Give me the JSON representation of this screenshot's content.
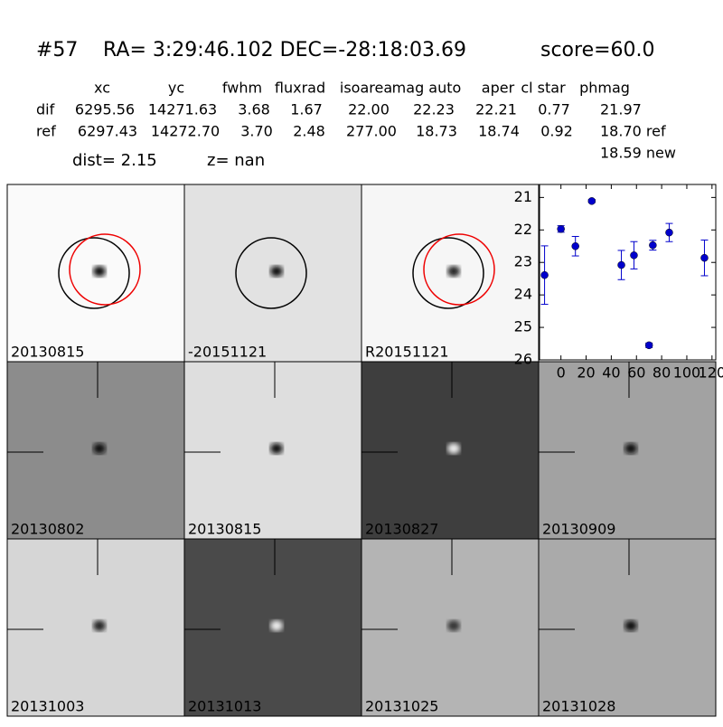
{
  "header": {
    "id": "#57",
    "coords": "RA= 3:29:46.102 DEC=-28:18:03.69",
    "score": "score=60.0"
  },
  "table": {
    "columns": [
      "xc",
      "yc",
      "fwhm",
      "fluxrad",
      "isoarea",
      "mag auto",
      "aper",
      "cl star",
      "phmag"
    ],
    "rows": [
      [
        "dif",
        "6295.56",
        "14271.63",
        "3.68",
        "1.67",
        "22.00",
        "22.23",
        "22.21",
        "0.77",
        "21.97"
      ],
      [
        "ref",
        "6297.43",
        "14272.70",
        "3.70",
        "2.48",
        "277.00",
        "18.73",
        "18.74",
        "0.92",
        "18.70 ref"
      ]
    ],
    "extra": "18.59 new"
  },
  "dist": "dist=  2.15",
  "z": "z=   nan",
  "panels": [
    {
      "label": "20130815",
      "bg": "#fafafa",
      "blob": "#111",
      "circles": [
        "#000",
        "#e00"
      ]
    },
    {
      "label": "-20151121",
      "bg": "#e2e2e2",
      "blob": "#111",
      "circles": [
        "#000"
      ]
    },
    {
      "label": "R20151121",
      "bg": "#f6f6f6",
      "blob": "#222",
      "circles": [
        "#000",
        "#e00"
      ]
    },
    null,
    {
      "label": "20130802",
      "bg": "#8c8c8c",
      "blob": "#111",
      "cross": true
    },
    {
      "label": "20130815",
      "bg": "#dedede",
      "blob": "#111",
      "cross": true,
      "labelColor": "#e00"
    },
    {
      "label": "20130827",
      "bg": "#3e3e3e",
      "blob": "#eee",
      "cross": true
    },
    {
      "label": "20130909",
      "bg": "#a2a2a2",
      "blob": "#111",
      "cross": true
    },
    {
      "label": "20131003",
      "bg": "#d6d6d6",
      "blob": "#222",
      "cross": true
    },
    {
      "label": "20131013",
      "bg": "#4a4a4a",
      "blob": "#eee",
      "cross": true
    },
    {
      "label": "20131025",
      "bg": "#b4b4b4",
      "blob": "#333",
      "cross": true
    },
    {
      "label": "20131028",
      "bg": "#aaaaaa",
      "blob": "#111",
      "cross": true
    }
  ],
  "chart_data": {
    "type": "scatter",
    "color": "#0000cc",
    "x": [
      -13,
      0,
      11.5,
      24.5,
      48,
      58,
      70,
      73,
      86,
      114
    ],
    "values": [
      23.39,
      21.97,
      22.5,
      21.11,
      23.08,
      22.78,
      25.55,
      22.47,
      22.08,
      22.86
    ],
    "errors": [
      0.9,
      0.1,
      0.3,
      0.05,
      0.45,
      0.42,
      0.07,
      0.15,
      0.28,
      0.55
    ],
    "xlim": [
      -17,
      123
    ],
    "xticks": [
      0,
      20,
      40,
      60,
      80,
      100,
      120
    ],
    "ylim": [
      26,
      20.6
    ],
    "yticks": [
      21,
      22,
      23,
      24,
      25,
      26
    ]
  }
}
